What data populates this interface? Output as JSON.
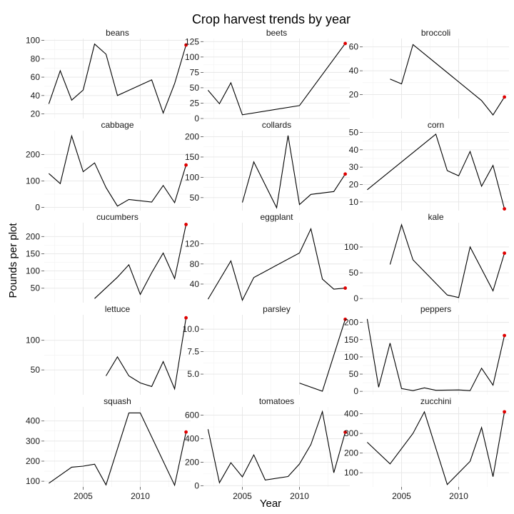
{
  "chart_data": {
    "type": "line",
    "title": "Crop harvest trends by year",
    "xlabel": "Year",
    "ylabel": "Pounds per plot",
    "xlim": [
      2001.6,
      2014.4
    ],
    "x_ticks": [
      2005,
      2010
    ],
    "grid": true,
    "last_point_color": "#e00000",
    "line_color": "#000000",
    "panels": [
      {
        "name": "beans",
        "ylim": [
          15,
          102
        ],
        "yticks": [
          20,
          40,
          60,
          80,
          100
        ],
        "points": [
          [
            2002,
            31
          ],
          [
            2003,
            67
          ],
          [
            2004,
            35
          ],
          [
            2005,
            46
          ],
          [
            2006,
            96
          ],
          [
            2007,
            85
          ],
          [
            2008,
            40
          ],
          [
            2011,
            57
          ],
          [
            2012,
            21
          ],
          [
            2013,
            53
          ],
          [
            2014,
            95
          ]
        ]
      },
      {
        "name": "beets",
        "ylim": [
          0,
          130
        ],
        "yticks": [
          0,
          25,
          50,
          75,
          100,
          125
        ],
        "points": [
          [
            2002,
            46
          ],
          [
            2003,
            24
          ],
          [
            2004,
            58
          ],
          [
            2005,
            6
          ],
          [
            2010,
            21
          ],
          [
            2014,
            122
          ]
        ]
      },
      {
        "name": "broccoli",
        "ylim": [
          0,
          67
        ],
        "yticks": [
          20,
          40,
          60
        ],
        "points": [
          [
            2004,
            33
          ],
          [
            2005,
            29
          ],
          [
            2006,
            62
          ],
          [
            2012,
            15
          ],
          [
            2013,
            3
          ],
          [
            2014,
            18
          ]
        ]
      },
      {
        "name": "cabbage",
        "ylim": [
          -12,
          290
        ],
        "yticks": [
          0,
          100,
          200
        ],
        "points": [
          [
            2002,
            128
          ],
          [
            2003,
            90
          ],
          [
            2004,
            270
          ],
          [
            2005,
            135
          ],
          [
            2006,
            168
          ],
          [
            2007,
            75
          ],
          [
            2008,
            5
          ],
          [
            2009,
            30
          ],
          [
            2011,
            20
          ],
          [
            2012,
            83
          ],
          [
            2013,
            18
          ],
          [
            2014,
            160
          ]
        ]
      },
      {
        "name": "collards",
        "ylim": [
          18,
          215
        ],
        "yticks": [
          50,
          100,
          150,
          200
        ],
        "points": [
          [
            2005,
            38
          ],
          [
            2006,
            138
          ],
          [
            2008,
            25
          ],
          [
            2009,
            203
          ],
          [
            2010,
            33
          ],
          [
            2011,
            58
          ],
          [
            2013,
            65
          ],
          [
            2014,
            108
          ]
        ]
      },
      {
        "name": "corn",
        "ylim": [
          5,
          51
        ],
        "yticks": [
          10,
          20,
          30,
          40,
          50
        ],
        "points": [
          [
            2002,
            17
          ],
          [
            2008,
            49
          ],
          [
            2009,
            28
          ],
          [
            2010,
            25
          ],
          [
            2011,
            39
          ],
          [
            2012,
            19
          ],
          [
            2013,
            31
          ],
          [
            2014,
            6
          ]
        ]
      },
      {
        "name": "cucumbers",
        "ylim": [
          8,
          240
        ],
        "yticks": [
          50,
          100,
          150,
          200
        ],
        "points": [
          [
            2006,
            20
          ],
          [
            2008,
            82
          ],
          [
            2009,
            118
          ],
          [
            2010,
            32
          ],
          [
            2011,
            95
          ],
          [
            2012,
            152
          ],
          [
            2013,
            78
          ],
          [
            2014,
            235
          ]
        ]
      },
      {
        "name": "eggplant",
        "ylim": [
          3,
          162
        ],
        "yticks": [
          40,
          80,
          120
        ],
        "points": [
          [
            2002,
            10
          ],
          [
            2004,
            86
          ],
          [
            2005,
            8
          ],
          [
            2006,
            53
          ],
          [
            2010,
            102
          ],
          [
            2011,
            150
          ],
          [
            2012,
            50
          ],
          [
            2013,
            30
          ],
          [
            2014,
            32
          ]
        ]
      },
      {
        "name": "kale",
        "ylim": [
          -8,
          147
        ],
        "yticks": [
          0,
          50,
          100
        ],
        "points": [
          [
            2004,
            66
          ],
          [
            2005,
            143
          ],
          [
            2006,
            75
          ],
          [
            2009,
            7
          ],
          [
            2010,
            2
          ],
          [
            2011,
            100
          ],
          [
            2013,
            15
          ],
          [
            2014,
            88
          ]
        ]
      },
      {
        "name": "lettuce",
        "ylim": [
          8,
          143
        ],
        "yticks": [
          50,
          100
        ],
        "points": [
          [
            2007,
            40
          ],
          [
            2008,
            72
          ],
          [
            2009,
            40
          ],
          [
            2010,
            28
          ],
          [
            2011,
            22
          ],
          [
            2012,
            64
          ],
          [
            2013,
            18
          ],
          [
            2014,
            138
          ]
        ]
      },
      {
        "name": "parsley",
        "ylim": [
          2.7,
          11.6
        ],
        "yticks": [
          5.0,
          7.5,
          10.0
        ],
        "ytick_labels": [
          "5.0",
          "7.5",
          "10.0"
        ],
        "points": [
          [
            2010,
            4
          ],
          [
            2012,
            3.1
          ],
          [
            2014,
            11.1
          ]
        ]
      },
      {
        "name": "peppers",
        "ylim": [
          -10,
          222
        ],
        "yticks": [
          0,
          50,
          100,
          150,
          200
        ],
        "points": [
          [
            2002,
            210
          ],
          [
            2003,
            12
          ],
          [
            2004,
            140
          ],
          [
            2005,
            8
          ],
          [
            2006,
            2
          ],
          [
            2007,
            10
          ],
          [
            2008,
            3
          ],
          [
            2010,
            4
          ],
          [
            2011,
            2
          ],
          [
            2012,
            67
          ],
          [
            2013,
            18
          ],
          [
            2014,
            162
          ]
        ]
      },
      {
        "name": "squash",
        "ylim": [
          72,
          470
        ],
        "yticks": [
          100,
          200,
          300,
          400
        ],
        "points": [
          [
            2002,
            90
          ],
          [
            2004,
            170
          ],
          [
            2005,
            175
          ],
          [
            2006,
            185
          ],
          [
            2007,
            82
          ],
          [
            2009,
            440
          ],
          [
            2010,
            440
          ],
          [
            2013,
            80
          ],
          [
            2014,
            345
          ]
        ]
      },
      {
        "name": "tomatoes",
        "ylim": [
          -10,
          670
        ],
        "yticks": [
          0,
          200,
          400,
          600
        ],
        "points": [
          [
            2002,
            480
          ],
          [
            2003,
            25
          ],
          [
            2004,
            195
          ],
          [
            2005,
            75
          ],
          [
            2006,
            262
          ],
          [
            2007,
            48
          ],
          [
            2009,
            78
          ],
          [
            2010,
            185
          ],
          [
            2011,
            350
          ],
          [
            2012,
            630
          ],
          [
            2013,
            110
          ],
          [
            2014,
            455
          ]
        ]
      },
      {
        "name": "zucchini",
        "ylim": [
          28,
          435
        ],
        "yticks": [
          100,
          200,
          300,
          400
        ],
        "points": [
          [
            2002,
            255
          ],
          [
            2004,
            145
          ],
          [
            2006,
            300
          ],
          [
            2007,
            410
          ],
          [
            2009,
            40
          ],
          [
            2011,
            158
          ],
          [
            2012,
            330
          ],
          [
            2013,
            80
          ],
          [
            2014,
            410
          ]
        ]
      }
    ]
  }
}
